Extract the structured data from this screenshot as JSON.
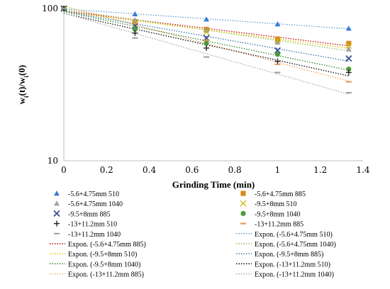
{
  "chart_data": {
    "type": "scatter",
    "xlabel": "Grinding Time (min)",
    "ylabel_main": "w",
    "ylabel_sub1": "i",
    "ylabel_mid": "(t)/w",
    "ylabel_sub2": "i",
    "ylabel_end": "(0)",
    "x_ticks": [
      "0",
      "0.2",
      "0.4",
      "0.6",
      "0.8",
      "1",
      "1.2",
      "1.4"
    ],
    "y_ticks": [
      "10",
      "100"
    ],
    "xlim": [
      0,
      1.4
    ],
    "ylim": [
      10,
      100
    ],
    "y_scale": "log",
    "x": [
      0,
      0.333,
      0.667,
      1,
      1.333
    ],
    "series": [
      {
        "name": "-5.6+4.75mm 510",
        "marker": "triangle",
        "color": "#3b7dd8",
        "values": [
          100,
          92,
          85,
          79,
          74
        ],
        "fit": "Expon. (-5.6+4.75mm 510)",
        "fit_color": "#5b9bd5"
      },
      {
        "name": "-5.6+4.75mm 885",
        "marker": "square",
        "color": "#d88a1e",
        "values": [
          100,
          82,
          73,
          63,
          59
        ],
        "fit": "Expon. (-5.6+4.75mm 885)",
        "fit_color": "#c00000"
      },
      {
        "name": "-5.6+4.75mm 1040",
        "marker": "triangle",
        "color": "#a0a0a0",
        "values": [
          100,
          84,
          72,
          60,
          54
        ],
        "fit": "Expon. (-5.6+4.75mm 1040)",
        "fit_color": "#92c050"
      },
      {
        "name": "-9.5+8mm 510",
        "marker": "x",
        "color": "#c8b400",
        "values": [
          100,
          80,
          70,
          62,
          57
        ],
        "fit": "Expon. (-9.5+8mm 510)",
        "fit_color": "#e8c000"
      },
      {
        "name": "-9.5+8mm 885",
        "marker": "x-star",
        "color": "#3a4d8f",
        "values": [
          100,
          77,
          64,
          53,
          47
        ],
        "fit": "Expon. (-9.5+8mm 885)",
        "fit_color": "#2e75b6"
      },
      {
        "name": "-9.5+8mm 1040",
        "marker": "circle",
        "color": "#4e9a3a",
        "values": [
          100,
          73,
          59,
          50,
          40
        ],
        "fit": "Expon. (-9.5+8mm 1040)",
        "fit_color": "#2e8b2e"
      },
      {
        "name": "-13+11.2mm 510",
        "marker": "plus",
        "color": "#222222",
        "values": [
          100,
          69,
          55,
          45,
          38
        ],
        "fit": "Expon. (-13+11.2mm 510)",
        "fit_color": "#000000"
      },
      {
        "name": "-13+11.2mm 885",
        "marker": "dash",
        "color": "#e8904a",
        "values": [
          100,
          80,
          62,
          43,
          33
        ],
        "fit": "Expon. (-13+11.2mm 885)",
        "fit_color": "#f4a460"
      },
      {
        "name": "-13+11.2mm 1040",
        "marker": "dash",
        "color": "#9a9a9a",
        "values": [
          100,
          64,
          48,
          38,
          28
        ],
        "fit": "Expon. (-13+11.2mm 1040)",
        "fit_color": "#a9a9a9"
      }
    ],
    "legend_placement": "bottom",
    "grid": "none"
  }
}
